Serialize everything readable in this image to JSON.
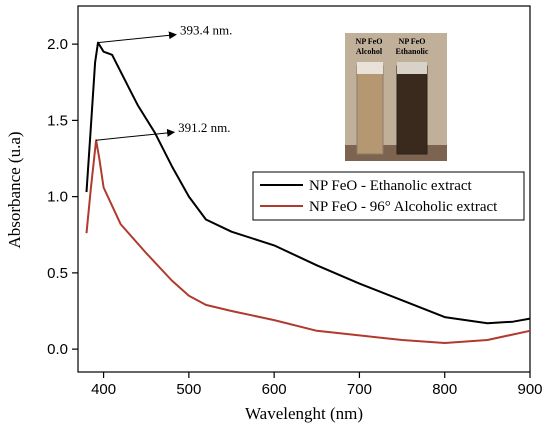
{
  "chart_data": {
    "type": "line",
    "xlabel": "Wavelenght (nm)",
    "ylabel": "Absorbance (u.a)",
    "xlim": [
      370,
      900
    ],
    "ylim": [
      -0.15,
      2.25
    ],
    "xticks": [
      400,
      500,
      600,
      700,
      800,
      900
    ],
    "yticks": [
      0.0,
      0.5,
      1.0,
      1.5,
      2.0
    ],
    "grid": false,
    "legend_position": "center-right",
    "series": [
      {
        "name": "NP FeO - Ethanolic extract",
        "color": "#000000",
        "x": [
          380,
          385,
          390,
          393.4,
          400,
          410,
          420,
          440,
          460,
          480,
          500,
          520,
          550,
          600,
          650,
          700,
          750,
          800,
          850,
          880,
          900
        ],
        "y": [
          1.03,
          1.45,
          1.88,
          2.01,
          1.95,
          1.93,
          1.82,
          1.6,
          1.42,
          1.2,
          1.0,
          0.85,
          0.77,
          0.68,
          0.55,
          0.43,
          0.32,
          0.21,
          0.17,
          0.18,
          0.2
        ]
      },
      {
        "name": "NP FeO - 96° Alcoholic extract",
        "color": "#b03a2e",
        "x": [
          380,
          385,
          391.2,
          395,
          400,
          420,
          450,
          480,
          500,
          520,
          550,
          600,
          650,
          700,
          750,
          800,
          850,
          900
        ],
        "y": [
          0.76,
          1.05,
          1.37,
          1.25,
          1.06,
          0.82,
          0.63,
          0.45,
          0.35,
          0.29,
          0.25,
          0.19,
          0.12,
          0.09,
          0.06,
          0.04,
          0.06,
          0.12
        ]
      }
    ],
    "annotations": [
      {
        "text": "393.4 nm.",
        "x": 393.4,
        "y": 2.01
      },
      {
        "text": "391.2 nm.",
        "x": 391.2,
        "y": 1.37
      }
    ],
    "inset": {
      "labels": [
        [
          "NP FeO",
          "Alcohol"
        ],
        [
          "NP FeO",
          "Ethanolic"
        ]
      ],
      "colors": {
        "background": "#c0b09a",
        "vial_left": "#b59872",
        "vial_right": "#3a2a1e"
      }
    }
  }
}
